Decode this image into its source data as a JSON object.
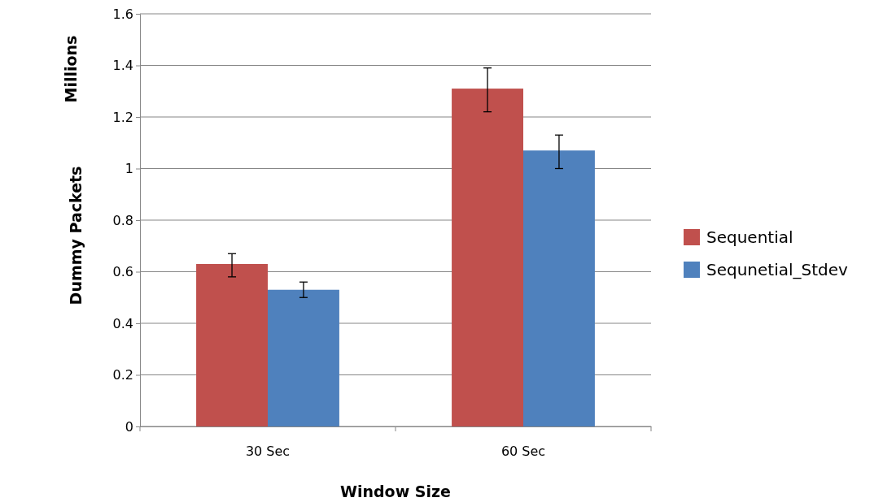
{
  "chart_data": {
    "type": "bar",
    "xlabel": "Window Size",
    "ylabel": "Dummy Packets",
    "annotations": [
      "Millions"
    ],
    "categories": [
      "30 Sec",
      "60 Sec"
    ],
    "series": [
      {
        "name": "Sequential",
        "color": "#c0504d",
        "values": [
          0.63,
          1.31
        ],
        "errors": [
          [
            0.58,
            0.67
          ],
          [
            1.22,
            1.39
          ]
        ]
      },
      {
        "name": "Sequnetial_Stdev",
        "color": "#4f81bd",
        "values": [
          0.53,
          1.07
        ],
        "errors": [
          [
            0.5,
            0.56
          ],
          [
            1.0,
            1.13
          ]
        ]
      }
    ],
    "ylim": [
      0,
      1.6
    ],
    "yticks": [
      0,
      0.2,
      0.4,
      0.6,
      0.8,
      1,
      1.2,
      1.4,
      1.6
    ],
    "grid": "y",
    "legend": "right"
  }
}
